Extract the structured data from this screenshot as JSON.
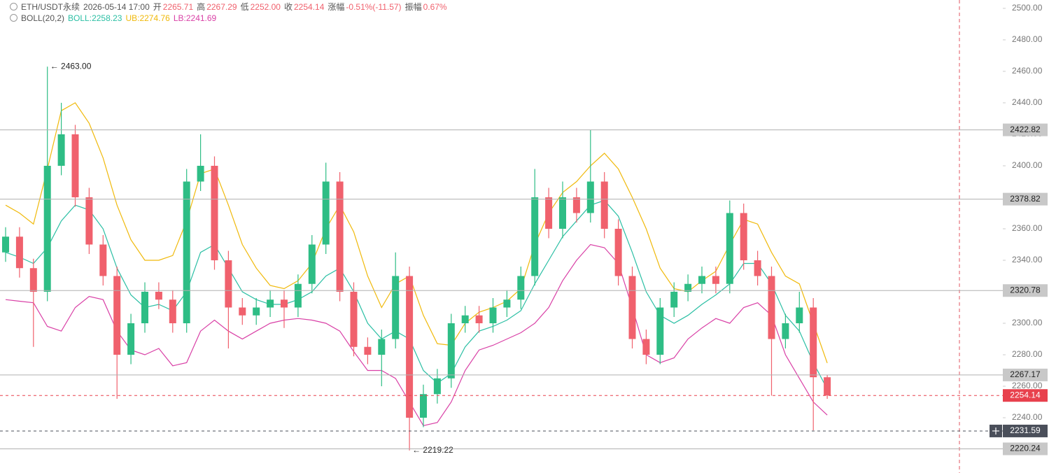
{
  "chart_data": {
    "type": "candlestick",
    "header": {
      "symbol": "ETH/USDT永续",
      "time": "2026-05-14 17:00",
      "fields": [
        {
          "label": "开",
          "value": "2265.71"
        },
        {
          "label": "高",
          "value": "2267.29"
        },
        {
          "label": "低",
          "value": "2252.00"
        },
        {
          "label": "收",
          "value": "2254.14"
        },
        {
          "label": "涨幅",
          "value": "-0.51%(-11.57)"
        },
        {
          "label": "振幅",
          "value": "0.67%"
        }
      ],
      "indicator": "BOLL(20,2)",
      "indicator_values": [
        {
          "text": "BOLL:2258.23",
          "color": "#2bbfa4"
        },
        {
          "text": "UB:2274.76",
          "color": "#f0b90b"
        },
        {
          "text": "LB:2241.69",
          "color": "#d940a6"
        }
      ]
    },
    "up_color": "#2ebd85",
    "down_color": "#f0616d",
    "open": [
      2345,
      2355,
      2335,
      2320,
      2400,
      2420,
      2380,
      2350,
      2330,
      2280,
      2300,
      2320,
      2315,
      2300,
      2390,
      2400,
      2340,
      2310,
      2305,
      2310,
      2315,
      2310,
      2325,
      2350,
      2390,
      2320,
      2285,
      2280,
      2290,
      2330,
      2240,
      2255,
      2265,
      2300,
      2305,
      2300,
      2310,
      2315,
      2330,
      2380,
      2360,
      2380,
      2370,
      2390,
      2360,
      2330,
      2290,
      2280,
      2310,
      2320,
      2325,
      2330,
      2325,
      2370,
      2340,
      2330,
      2290,
      2300,
      2310,
      2265.71
    ],
    "high": [
      2361,
      2361,
      2341,
      2463,
      2440,
      2426,
      2386,
      2356,
      2336,
      2306,
      2326,
      2326,
      2321,
      2398,
      2420,
      2406,
      2346,
      2316,
      2316,
      2321,
      2321,
      2331,
      2356,
      2402,
      2396,
      2326,
      2291,
      2296,
      2345,
      2336,
      2261,
      2271,
      2306,
      2311,
      2311,
      2316,
      2321,
      2336,
      2398,
      2386,
      2390,
      2386,
      2422.82,
      2396,
      2366,
      2336,
      2296,
      2316,
      2326,
      2331,
      2336,
      2336,
      2378,
      2376,
      2346,
      2336,
      2306,
      2320,
      2316,
      2267.29
    ],
    "low": [
      2339,
      2329,
      2285,
      2314,
      2394,
      2374,
      2344,
      2324,
      2252,
      2274,
      2294,
      2309,
      2294,
      2294,
      2384,
      2334,
      2284,
      2299,
      2299,
      2304,
      2297,
      2304,
      2319,
      2344,
      2314,
      2279,
      2274,
      2260,
      2284,
      2219.22,
      2234,
      2249,
      2259,
      2294,
      2294,
      2294,
      2304,
      2309,
      2324,
      2354,
      2354,
      2364,
      2364,
      2354,
      2324,
      2284,
      2274,
      2274,
      2304,
      2314,
      2319,
      2319,
      2319,
      2334,
      2324,
      2254,
      2284,
      2294,
      2232,
      2252
    ],
    "close": [
      2355,
      2335,
      2320,
      2400,
      2420,
      2380,
      2350,
      2330,
      2280,
      2300,
      2320,
      2315,
      2300,
      2390,
      2400,
      2340,
      2310,
      2305,
      2310,
      2315,
      2310,
      2325,
      2350,
      2390,
      2320,
      2285,
      2280,
      2290,
      2330,
      2240,
      2255,
      2265,
      2300,
      2305,
      2300,
      2310,
      2315,
      2330,
      2380,
      2360,
      2380,
      2370,
      2390,
      2360,
      2330,
      2290,
      2280,
      2310,
      2320,
      2325,
      2330,
      2325,
      2370,
      2340,
      2330,
      2290,
      2300,
      2310,
      2265.71,
      2254.14
    ],
    "lines": [
      {
        "color": "#2bbfa4",
        "values": [
          2345,
          2342,
          2338,
          2348,
          2365,
          2375,
          2372,
          2360,
          2335,
          2318,
          2310,
          2312,
          2308,
          2320,
          2345,
          2350,
          2335,
          2320,
          2315,
          2312,
          2312,
          2315,
          2320,
          2330,
          2335,
          2320,
          2300,
          2290,
          2295,
          2290,
          2270,
          2262,
          2268,
          2285,
          2295,
          2298,
          2302,
          2308,
          2325,
          2340,
          2355,
          2365,
          2375,
          2378,
          2368,
          2345,
          2320,
          2305,
          2300,
          2305,
          2312,
          2318,
          2325,
          2338,
          2338,
          2325,
          2305,
          2295,
          2275,
          2258.23
        ]
      },
      {
        "color": "#f0b90b",
        "values": [
          2375,
          2370,
          2363,
          2398,
          2435,
          2440,
          2427,
          2405,
          2375,
          2353,
          2340,
          2340,
          2343,
          2365,
          2395,
          2398,
          2375,
          2350,
          2335,
          2324,
          2322,
          2327,
          2338,
          2360,
          2375,
          2358,
          2330,
          2310,
          2325,
          2330,
          2305,
          2287,
          2286,
          2300,
          2307,
          2310,
          2314,
          2322,
          2350,
          2370,
          2383,
          2390,
          2400,
          2408,
          2398,
          2380,
          2360,
          2335,
          2322,
          2320,
          2327,
          2333,
          2350,
          2366,
          2363,
          2345,
          2330,
          2325,
          2300,
          2274.76
        ]
      },
      {
        "color": "#d940a6",
        "values": [
          2315,
          2314,
          2313,
          2298,
          2295,
          2310,
          2317,
          2315,
          2295,
          2283,
          2280,
          2284,
          2273,
          2275,
          2295,
          2302,
          2295,
          2290,
          2295,
          2300,
          2302,
          2303,
          2302,
          2300,
          2295,
          2282,
          2270,
          2270,
          2265,
          2250,
          2235,
          2237,
          2250,
          2270,
          2283,
          2286,
          2290,
          2294,
          2300,
          2310,
          2327,
          2340,
          2350,
          2348,
          2338,
          2310,
          2280,
          2275,
          2278,
          2290,
          2297,
          2303,
          2300,
          2310,
          2313,
          2305,
          2280,
          2265,
          2250,
          2241.69
        ]
      }
    ],
    "high_label": "2463.00",
    "low_label": "2219.22",
    "ylim": [
      2204.9,
      2505.3
    ],
    "yticks": [
      {
        "value": 2240,
        "label": "2240.00"
      },
      {
        "value": 2260,
        "label": "2260.00"
      },
      {
        "value": 2280,
        "label": "2280.00"
      },
      {
        "value": 2300,
        "label": "2300.00"
      },
      {
        "value": 2320,
        "label": "2320.00"
      },
      {
        "value": 2340,
        "label": "2340.00"
      },
      {
        "value": 2360,
        "label": "2360.00"
      },
      {
        "value": 2380,
        "label": "2380.00"
      },
      {
        "value": 2400,
        "label": "2400.00"
      },
      {
        "value": 2420,
        "label": "2420.00"
      },
      {
        "value": 2440,
        "label": "2440.00"
      },
      {
        "value": 2460,
        "label": "2460.00"
      },
      {
        "value": 2480,
        "label": "2480.00"
      },
      {
        "value": 2500,
        "label": "2500.00"
      }
    ],
    "levels": [
      {
        "value": 2422.82,
        "style": "solid",
        "color": "#b0b0b0"
      },
      {
        "value": 2378.82,
        "style": "solid",
        "color": "#b0b0b0"
      },
      {
        "value": 2320.78,
        "style": "solid",
        "color": "#b0b0b0"
      },
      {
        "value": 2267.17,
        "style": "solid",
        "color": "#b0b0b0"
      },
      {
        "value": 2254.14,
        "style": "dashed",
        "color": "#e8414d"
      },
      {
        "value": 2231.59,
        "style": "dashed",
        "color": "#4a4f5a"
      },
      {
        "value": 2220.24,
        "style": "solid",
        "color": "#b0b0b0"
      }
    ]
  }
}
